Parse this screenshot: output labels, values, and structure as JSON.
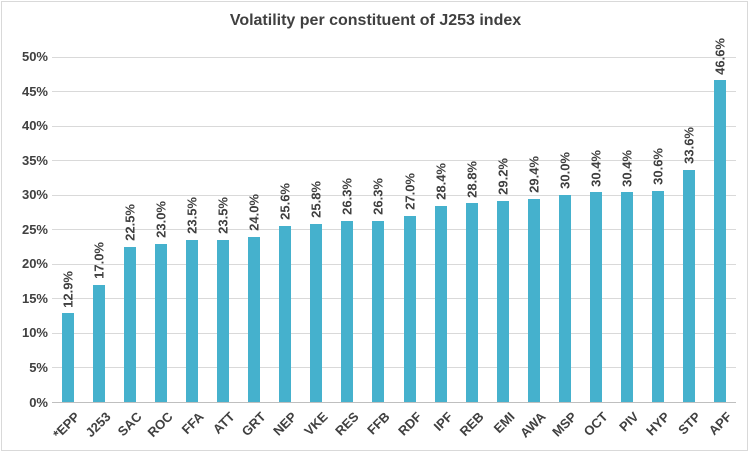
{
  "chart_data": {
    "type": "bar",
    "title": "Volatility per constituent of J253 index",
    "categories": [
      "*EPP",
      "J253",
      "SAC",
      "ROC",
      "FFA",
      "ATT",
      "GRT",
      "NEP",
      "VKE",
      "RES",
      "FFB",
      "RDF",
      "IPF",
      "REB",
      "EMI",
      "AWA",
      "MSP",
      "OCT",
      "PIV",
      "HYP",
      "STP",
      "APF"
    ],
    "values": [
      12.9,
      17.0,
      22.5,
      23.0,
      23.5,
      23.5,
      24.0,
      25.6,
      25.8,
      26.3,
      26.3,
      27.0,
      28.4,
      28.8,
      29.2,
      29.4,
      30.0,
      30.4,
      30.4,
      30.6,
      33.6,
      46.6
    ],
    "data_labels": [
      "12.9%",
      "17.0%",
      "22.5%",
      "23.0%",
      "23.5%",
      "23.5%",
      "24.0%",
      "25.6%",
      "25.8%",
      "26.3%",
      "26.3%",
      "27.0%",
      "28.4%",
      "28.8%",
      "29.2%",
      "29.4%",
      "30.0%",
      "30.4%",
      "30.4%",
      "30.6%",
      "33.6%",
      "46.6%"
    ],
    "xlabel": "",
    "ylabel": "",
    "ylim": [
      0,
      50
    ],
    "ytick_step": 5,
    "ytick_labels": [
      "0%",
      "5%",
      "10%",
      "15%",
      "20%",
      "25%",
      "30%",
      "35%",
      "40%",
      "45%",
      "50%"
    ],
    "grid": true,
    "legend": false,
    "colors": {
      "bar": "#45b1cd",
      "title_text": "#404040",
      "axis_text": "#404040",
      "data_label_text": "#404040",
      "gridline": "#d9d9d9",
      "axis_line": "#bfbfbf",
      "chart_border": "#d9d9d9",
      "background": "#ffffff"
    }
  }
}
